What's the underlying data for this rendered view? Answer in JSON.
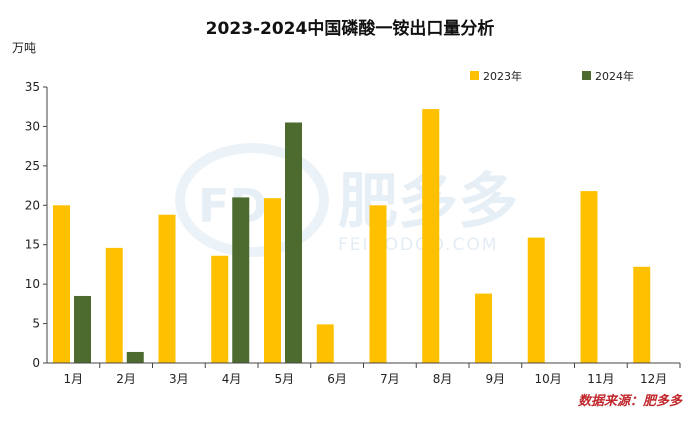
{
  "chart_data": {
    "type": "bar",
    "title": "2023-2024中国磷酸一铵出口量分析",
    "ylabel": "万吨",
    "xlabel": "",
    "ylim": [
      0,
      35
    ],
    "yticks": [
      0,
      5,
      10,
      15,
      20,
      25,
      30,
      35
    ],
    "categories": [
      "1月",
      "2月",
      "3月",
      "4月",
      "5月",
      "6月",
      "7月",
      "8月",
      "9月",
      "10月",
      "11月",
      "12月"
    ],
    "series": [
      {
        "name": "2023年",
        "color": "#FFC000",
        "values": [
          20.0,
          14.6,
          18.8,
          13.6,
          20.9,
          4.9,
          20.0,
          32.2,
          8.8,
          15.9,
          21.8,
          12.2
        ]
      },
      {
        "name": "2024年",
        "color": "#4E6B2F",
        "values": [
          8.5,
          1.4,
          null,
          21.0,
          30.5,
          null,
          null,
          null,
          null,
          null,
          null,
          null
        ]
      }
    ],
    "legend_position": "top-right",
    "grid": false
  },
  "watermark": {
    "text": "肥多多",
    "sub": "FEIDODOO.COM",
    "logo": "FD"
  },
  "source_note": "数据来源：肥多多"
}
